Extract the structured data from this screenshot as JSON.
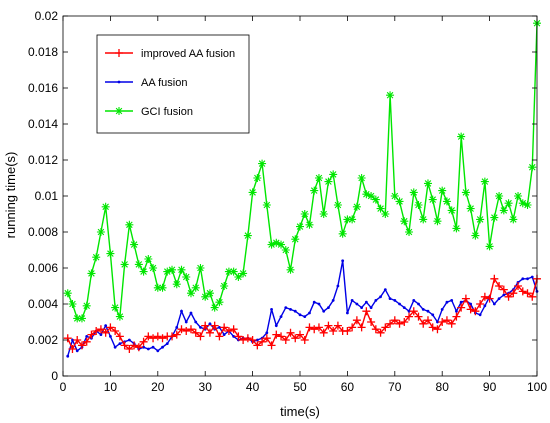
{
  "chart_data": {
    "type": "line",
    "title": "",
    "xlabel": "time(s)",
    "ylabel": "running time(s)",
    "xlim": [
      0,
      100
    ],
    "ylim": [
      0,
      0.02
    ],
    "xticks": [
      0,
      10,
      20,
      30,
      40,
      50,
      60,
      70,
      80,
      90,
      100
    ],
    "xtick_labels": [
      "0",
      "10",
      "20",
      "30",
      "40",
      "50",
      "60",
      "70",
      "80",
      "90",
      "100"
    ],
    "yticks": [
      0,
      0.002,
      0.004,
      0.006,
      0.008,
      0.01,
      0.012,
      0.014,
      0.016,
      0.018,
      0.02
    ],
    "ytick_labels": [
      "0",
      "0.002",
      "0.004",
      "0.006",
      "0.008",
      "0.01",
      "0.012",
      "0.014",
      "0.016",
      "0.018",
      "0.02"
    ],
    "grid": false,
    "legend_position": "top-left",
    "series": [
      {
        "name": "improved AA fusion",
        "color": "#ff0000",
        "marker": "plus",
        "x": [
          1,
          2,
          3,
          4,
          5,
          6,
          7,
          8,
          9,
          10,
          11,
          12,
          13,
          14,
          15,
          16,
          17,
          18,
          19,
          20,
          21,
          22,
          23,
          24,
          25,
          26,
          27,
          28,
          29,
          30,
          31,
          32,
          33,
          34,
          35,
          36,
          37,
          38,
          39,
          40,
          41,
          42,
          43,
          44,
          45,
          46,
          47,
          48,
          49,
          50,
          51,
          52,
          53,
          54,
          55,
          56,
          57,
          58,
          59,
          60,
          61,
          62,
          63,
          64,
          65,
          66,
          67,
          68,
          69,
          70,
          71,
          72,
          73,
          74,
          75,
          76,
          77,
          78,
          79,
          80,
          81,
          82,
          83,
          84,
          85,
          86,
          87,
          88,
          89,
          90,
          91,
          92,
          93,
          94,
          95,
          96,
          97,
          98,
          99,
          100
        ],
        "y": [
          0.0021,
          0.0015,
          0.002,
          0.0017,
          0.0019,
          0.0023,
          0.0025,
          0.0026,
          0.0024,
          0.0027,
          0.0025,
          0.0022,
          0.0017,
          0.0015,
          0.0017,
          0.0016,
          0.0019,
          0.0022,
          0.0021,
          0.0022,
          0.0021,
          0.0022,
          0.0022,
          0.0023,
          0.0026,
          0.0025,
          0.0026,
          0.0024,
          0.0022,
          0.0028,
          0.0024,
          0.0028,
          0.0022,
          0.0027,
          0.0025,
          0.0026,
          0.0022,
          0.002,
          0.0021,
          0.002,
          0.0017,
          0.0019,
          0.0021,
          0.0017,
          0.0023,
          0.0022,
          0.002,
          0.0024,
          0.0021,
          0.0023,
          0.002,
          0.0027,
          0.0026,
          0.0027,
          0.0024,
          0.0028,
          0.0025,
          0.0028,
          0.0025,
          0.0025,
          0.0027,
          0.0031,
          0.0027,
          0.0036,
          0.003,
          0.0026,
          0.0024,
          0.0027,
          0.0029,
          0.0031,
          0.0029,
          0.003,
          0.0033,
          0.0036,
          0.0033,
          0.0029,
          0.0031,
          0.0027,
          0.0026,
          0.003,
          0.0031,
          0.0029,
          0.0033,
          0.0038,
          0.0043,
          0.0037,
          0.0036,
          0.004,
          0.0044,
          0.0043,
          0.0054,
          0.005,
          0.0048,
          0.0044,
          0.0046,
          0.005,
          0.0047,
          0.0046,
          0.0044,
          0.0054
        ]
      },
      {
        "name": "AA fusion",
        "color": "#0000e6",
        "marker": "point",
        "x": [
          1,
          2,
          3,
          4,
          5,
          6,
          7,
          8,
          9,
          10,
          11,
          12,
          13,
          14,
          15,
          16,
          17,
          18,
          19,
          20,
          21,
          22,
          23,
          24,
          25,
          26,
          27,
          28,
          29,
          30,
          31,
          32,
          33,
          34,
          35,
          36,
          37,
          38,
          39,
          40,
          41,
          42,
          43,
          44,
          45,
          46,
          47,
          48,
          49,
          50,
          51,
          52,
          53,
          54,
          55,
          56,
          57,
          58,
          59,
          60,
          61,
          62,
          63,
          64,
          65,
          66,
          67,
          68,
          69,
          70,
          71,
          72,
          73,
          74,
          75,
          76,
          77,
          78,
          79,
          80,
          81,
          82,
          83,
          84,
          85,
          86,
          87,
          88,
          89,
          90,
          91,
          92,
          93,
          94,
          95,
          96,
          97,
          98,
          99,
          100
        ],
        "y": [
          0.0011,
          0.002,
          0.0014,
          0.0016,
          0.0022,
          0.0021,
          0.0025,
          0.0023,
          0.0028,
          0.0022,
          0.0016,
          0.0018,
          0.0019,
          0.002,
          0.0018,
          0.0015,
          0.0016,
          0.0015,
          0.0016,
          0.0014,
          0.0016,
          0.0018,
          0.0022,
          0.0027,
          0.0036,
          0.003,
          0.0035,
          0.003,
          0.0027,
          0.0026,
          0.0029,
          0.0026,
          0.0027,
          0.0023,
          0.0025,
          0.0022,
          0.002,
          0.0021,
          0.0021,
          0.0019,
          0.002,
          0.0021,
          0.0024,
          0.0037,
          0.0028,
          0.0033,
          0.0038,
          0.0037,
          0.0036,
          0.0034,
          0.0033,
          0.0035,
          0.0041,
          0.004,
          0.0036,
          0.0038,
          0.0042,
          0.005,
          0.0064,
          0.0035,
          0.0042,
          0.004,
          0.0038,
          0.0041,
          0.0038,
          0.0042,
          0.0044,
          0.0048,
          0.0043,
          0.0042,
          0.004,
          0.0038,
          0.0036,
          0.0042,
          0.004,
          0.0037,
          0.0036,
          0.0034,
          0.003,
          0.0037,
          0.0041,
          0.0042,
          0.0036,
          0.0041,
          0.0042,
          0.004,
          0.0035,
          0.0034,
          0.0039,
          0.0044,
          0.004,
          0.0043,
          0.0045,
          0.0046,
          0.0048,
          0.0052,
          0.0054,
          0.0054,
          0.0055,
          0.0047
        ]
      },
      {
        "name": "GCI fusion",
        "color": "#00e600",
        "marker": "asterisk",
        "x": [
          1,
          2,
          3,
          4,
          5,
          6,
          7,
          8,
          9,
          10,
          11,
          12,
          13,
          14,
          15,
          16,
          17,
          18,
          19,
          20,
          21,
          22,
          23,
          24,
          25,
          26,
          27,
          28,
          29,
          30,
          31,
          32,
          33,
          34,
          35,
          36,
          37,
          38,
          39,
          40,
          41,
          42,
          43,
          44,
          45,
          46,
          47,
          48,
          49,
          50,
          51,
          52,
          53,
          54,
          55,
          56,
          57,
          58,
          59,
          60,
          61,
          62,
          63,
          64,
          65,
          66,
          67,
          68,
          69,
          70,
          71,
          72,
          73,
          74,
          75,
          76,
          77,
          78,
          79,
          80,
          81,
          82,
          83,
          84,
          85,
          86,
          87,
          88,
          89,
          90,
          91,
          92,
          93,
          94,
          95,
          96,
          97,
          98,
          99,
          100
        ],
        "y": [
          0.0046,
          0.004,
          0.0032,
          0.0032,
          0.0039,
          0.0057,
          0.0066,
          0.008,
          0.0094,
          0.0068,
          0.0038,
          0.0033,
          0.0062,
          0.0084,
          0.0073,
          0.0062,
          0.0058,
          0.0065,
          0.006,
          0.0049,
          0.0049,
          0.0058,
          0.0059,
          0.0051,
          0.0059,
          0.0055,
          0.0046,
          0.0049,
          0.006,
          0.0044,
          0.0046,
          0.0038,
          0.0041,
          0.005,
          0.0058,
          0.0058,
          0.0055,
          0.0057,
          0.0078,
          0.0102,
          0.011,
          0.0118,
          0.0095,
          0.0073,
          0.0074,
          0.0073,
          0.007,
          0.0059,
          0.0076,
          0.0083,
          0.009,
          0.0084,
          0.0103,
          0.011,
          0.009,
          0.0108,
          0.0112,
          0.0095,
          0.0079,
          0.0087,
          0.0087,
          0.0094,
          0.011,
          0.0101,
          0.01,
          0.0098,
          0.0093,
          0.009,
          0.0156,
          0.01,
          0.0097,
          0.0086,
          0.008,
          0.0102,
          0.0095,
          0.0087,
          0.0107,
          0.0098,
          0.0086,
          0.0103,
          0.0097,
          0.0092,
          0.0082,
          0.0133,
          0.0102,
          0.0093,
          0.0078,
          0.0087,
          0.0108,
          0.0072,
          0.0088,
          0.01,
          0.0092,
          0.0096,
          0.0087,
          0.01,
          0.0096,
          0.0095,
          0.0116,
          0.0196
        ]
      }
    ]
  }
}
